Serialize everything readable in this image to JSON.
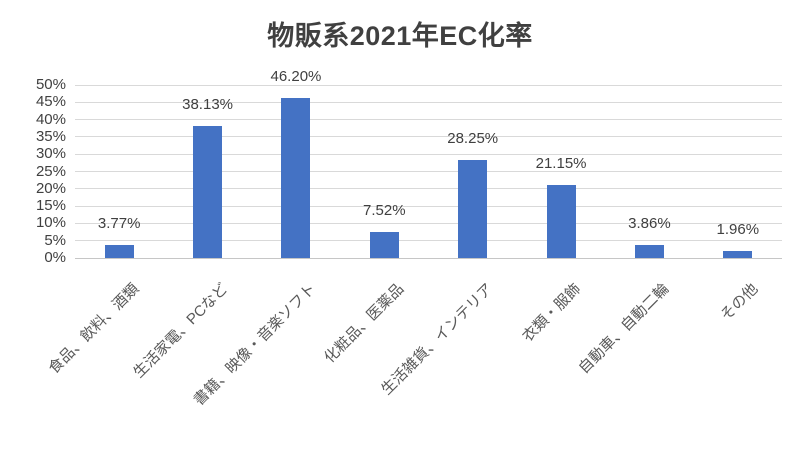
{
  "chart_data": {
    "type": "bar",
    "title": "物販系2021年EC化率",
    "categories": [
      "食品、飲料、酒類",
      "生活家電、PCなど",
      "書籍、映像・音楽ソフト",
      "化粧品、医薬品",
      "生活雑貨、インテリア",
      "衣類・服飾",
      "自動車、自動二輪",
      "その他"
    ],
    "values": [
      3.77,
      38.13,
      46.2,
      7.52,
      28.25,
      21.15,
      3.86,
      1.96
    ],
    "data_labels": [
      "3.77%",
      "38.13%",
      "46.20%",
      "7.52%",
      "28.25%",
      "21.15%",
      "3.86%",
      "1.96%"
    ],
    "xlabel": "",
    "ylabel": "",
    "ylim": [
      0,
      50
    ],
    "ytick_labels": [
      "0%",
      "5%",
      "10%",
      "15%",
      "20%",
      "25%",
      "30%",
      "35%",
      "40%",
      "45%",
      "50%"
    ],
    "grid": true,
    "legend": false,
    "bar_color": "#4472C4",
    "gridline_color": "#D9D9D9",
    "axisline_color": "#C6C6C6",
    "value_label_color": "#404040",
    "category_label_color": "#595959",
    "title_color": "#404040"
  }
}
